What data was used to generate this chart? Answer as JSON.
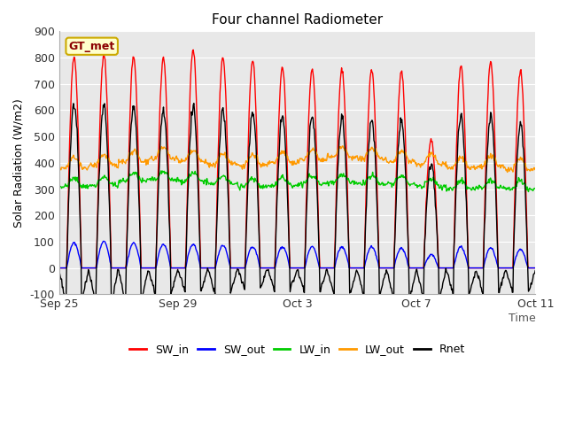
{
  "title": "Four channel Radiometer",
  "xlabel": "Time",
  "ylabel": "Solar Radiation (W/m2)",
  "ylim": [
    -100,
    900
  ],
  "yticks": [
    -100,
    0,
    100,
    200,
    300,
    400,
    500,
    600,
    700,
    800,
    900
  ],
  "xtick_positions": [
    0,
    4,
    8,
    12,
    16
  ],
  "xtick_labels": [
    "Sep 25",
    "Sep 29",
    "Oct 3",
    "Oct 7",
    "Oct 11"
  ],
  "legend_labels": [
    "SW_in",
    "SW_out",
    "LW_in",
    "LW_out",
    "Rnet"
  ],
  "legend_colors": [
    "#ff0000",
    "#0000ff",
    "#00cc00",
    "#ff9900",
    "#000000"
  ],
  "station_label": "GT_met",
  "station_label_color": "#8B0000",
  "station_bg_color": "#ffffcc",
  "bg_color": "#e8e8e8",
  "grid_color": "#ffffff",
  "n_days": 17,
  "xlim_end": 16,
  "SW_in_peaks": [
    805,
    815,
    805,
    800,
    830,
    800,
    790,
    760,
    755,
    755,
    755,
    750,
    490,
    770,
    780,
    750,
    0
  ],
  "SW_out_peaks": [
    95,
    100,
    95,
    90,
    90,
    85,
    80,
    80,
    80,
    80,
    80,
    75,
    50,
    80,
    75,
    70,
    0
  ],
  "LW_in_base": [
    310,
    315,
    330,
    335,
    330,
    320,
    310,
    315,
    320,
    325,
    320,
    320,
    310,
    300,
    305,
    300,
    310
  ],
  "LW_out_base": [
    380,
    390,
    405,
    415,
    405,
    395,
    390,
    400,
    410,
    420,
    415,
    405,
    395,
    380,
    385,
    375,
    370
  ],
  "Rnet_day_peaks": [
    620,
    625,
    615,
    600,
    610,
    600,
    590,
    580,
    575,
    575,
    570,
    565,
    400,
    580,
    580,
    555,
    0
  ],
  "Rnet_night_min": [
    -130,
    -135,
    -130,
    -100,
    -90,
    -95,
    -80,
    -85,
    -90,
    -100,
    -110,
    -120,
    -120,
    -105,
    -100,
    -95,
    -100
  ],
  "figsize": [
    6.4,
    4.8
  ],
  "dpi": 100,
  "line_width": 1.0,
  "title_fontsize": 11,
  "axis_fontsize": 9,
  "tick_fontsize": 9
}
